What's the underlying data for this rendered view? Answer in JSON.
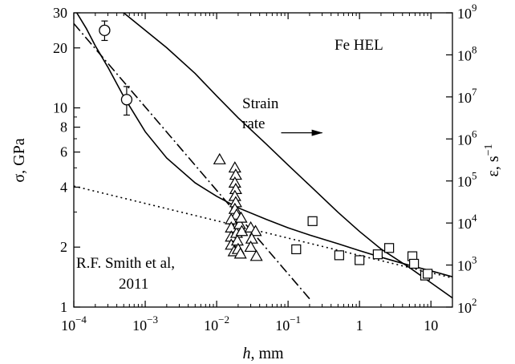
{
  "chart_data": {
    "type": "scatter",
    "title": "",
    "x_axis": {
      "label_main": "h",
      "label_unit": ", mm",
      "scale": "log",
      "range": [
        0.0001,
        20
      ],
      "ticks": [
        {
          "value": 0.0001,
          "base": "10",
          "exp": "−4",
          "text": ""
        },
        {
          "value": 0.001,
          "base": "10",
          "exp": "−3",
          "text": ""
        },
        {
          "value": 0.01,
          "base": "10",
          "exp": "−2",
          "text": ""
        },
        {
          "value": 0.1,
          "base": "10",
          "exp": "−1",
          "text": ""
        },
        {
          "value": 1,
          "base": "",
          "exp": "",
          "text": "1"
        },
        {
          "value": 10,
          "base": "",
          "exp": "",
          "text": "10"
        }
      ]
    },
    "y_axis_left": {
      "label": "σ, GPa",
      "scale": "log",
      "range": [
        1,
        30
      ],
      "ticks": [
        {
          "value": 1,
          "text": "1"
        },
        {
          "value": 2,
          "text": "2"
        },
        {
          "value": 4,
          "text": "4"
        },
        {
          "value": 6,
          "text": "6"
        },
        {
          "value": 8,
          "text": "8"
        },
        {
          "value": 10,
          "text": "10"
        },
        {
          "value": 20,
          "text": "20"
        },
        {
          "value": 30,
          "text": "30"
        }
      ]
    },
    "y_axis_right": {
      "label_main": "ε, s",
      "label_sup": "−1",
      "scale": "log",
      "range": [
        100,
        1000000000
      ],
      "ticks": [
        {
          "value": 100,
          "exp": "2"
        },
        {
          "value": 1000,
          "exp": "3"
        },
        {
          "value": 10000,
          "exp": "4"
        },
        {
          "value": 100000,
          "exp": "5"
        },
        {
          "value": 1000000,
          "exp": "6"
        },
        {
          "value": 10000000,
          "exp": "7"
        },
        {
          "value": 100000000,
          "exp": "8"
        },
        {
          "value": 1000000000,
          "exp": "9"
        }
      ]
    },
    "annotations": {
      "fe_hel": "Fe HEL",
      "strain_line1": "Strain",
      "strain_line2": "rate",
      "smith_line1": "R.F. Smith et al,",
      "smith_line2": "2011"
    },
    "series": [
      {
        "marker": "circle",
        "points": [
          {
            "x": 0.00027,
            "y": 24.5,
            "err_lo": 21.8,
            "err_hi": 27.3
          },
          {
            "x": 0.00055,
            "y": 11.0,
            "err_lo": 9.2,
            "err_hi": 12.8
          }
        ]
      },
      {
        "marker": "triangle",
        "points": [
          {
            "x": 0.011,
            "y": 5.5
          },
          {
            "x": 0.018,
            "y": 5.0
          },
          {
            "x": 0.0185,
            "y": 4.6
          },
          {
            "x": 0.018,
            "y": 4.2
          },
          {
            "x": 0.0185,
            "y": 3.9
          },
          {
            "x": 0.018,
            "y": 3.6
          },
          {
            "x": 0.0185,
            "y": 3.35
          },
          {
            "x": 0.018,
            "y": 3.1
          },
          {
            "x": 0.019,
            "y": 2.9
          },
          {
            "x": 0.016,
            "y": 2.75
          },
          {
            "x": 0.016,
            "y": 2.5
          },
          {
            "x": 0.016,
            "y": 2.25
          },
          {
            "x": 0.016,
            "y": 2.05
          },
          {
            "x": 0.0175,
            "y": 1.9
          },
          {
            "x": 0.019,
            "y": 2.35
          },
          {
            "x": 0.0195,
            "y": 2.15
          },
          {
            "x": 0.02,
            "y": 1.95
          },
          {
            "x": 0.0215,
            "y": 1.85
          },
          {
            "x": 0.021,
            "y": 2.6
          },
          {
            "x": 0.022,
            "y": 2.8
          },
          {
            "x": 0.0225,
            "y": 2.4
          },
          {
            "x": 0.03,
            "y": 2.5
          },
          {
            "x": 0.035,
            "y": 2.4
          },
          {
            "x": 0.031,
            "y": 2.2
          },
          {
            "x": 0.03,
            "y": 2.0
          },
          {
            "x": 0.036,
            "y": 1.8
          }
        ]
      },
      {
        "marker": "square",
        "points": [
          {
            "x": 0.13,
            "y": 1.95
          },
          {
            "x": 0.22,
            "y": 2.7
          },
          {
            "x": 0.52,
            "y": 1.82
          },
          {
            "x": 1.0,
            "y": 1.72
          },
          {
            "x": 1.8,
            "y": 1.84
          },
          {
            "x": 2.6,
            "y": 1.98
          },
          {
            "x": 5.5,
            "y": 1.8
          },
          {
            "x": 5.8,
            "y": 1.65
          },
          {
            "x": 8.3,
            "y": 1.44
          },
          {
            "x": 9.0,
            "y": 1.47
          }
        ]
      }
    ],
    "curves": [
      {
        "style": "solid",
        "axis": "left",
        "points": [
          [
            0.00011,
            30
          ],
          [
            0.00015,
            25
          ],
          [
            0.0002,
            20.5
          ],
          [
            0.0003,
            16
          ],
          [
            0.0005,
            11.4
          ],
          [
            0.001,
            7.6
          ],
          [
            0.002,
            5.6
          ],
          [
            0.005,
            4.2
          ],
          [
            0.01,
            3.6
          ],
          [
            0.02,
            3.15
          ],
          [
            0.05,
            2.75
          ],
          [
            0.1,
            2.5
          ],
          [
            0.2,
            2.3
          ],
          [
            0.5,
            2.08
          ],
          [
            1,
            1.92
          ],
          [
            2,
            1.78
          ],
          [
            5,
            1.62
          ],
          [
            10,
            1.52
          ],
          [
            20,
            1.42
          ]
        ]
      },
      {
        "style": "solid",
        "axis": "right",
        "points": [
          [
            0.0005,
            1000000000
          ],
          [
            0.001,
            385000000
          ],
          [
            0.002,
            148000000
          ],
          [
            0.005,
            36000000
          ],
          [
            0.01,
            10500000
          ],
          [
            0.02,
            3180000
          ],
          [
            0.05,
            740000
          ],
          [
            0.1,
            240000
          ],
          [
            0.2,
            79000
          ],
          [
            0.5,
            18000
          ],
          [
            1,
            6300
          ],
          [
            2,
            2400
          ],
          [
            5,
            870
          ],
          [
            10,
            380
          ],
          [
            20,
            165
          ]
        ]
      },
      {
        "style": "dashdot",
        "axis": "left",
        "points": [
          [
            0.0001,
            26.5
          ],
          [
            0.2,
            1.1
          ]
        ]
      },
      {
        "style": "dotted",
        "axis": "left",
        "points": [
          [
            0.0001,
            4.05
          ],
          [
            20,
            1.4
          ]
        ]
      }
    ],
    "arrow": {
      "from": [
        0.08,
        1400000
      ],
      "to": [
        0.3,
        1400000
      ]
    }
  }
}
